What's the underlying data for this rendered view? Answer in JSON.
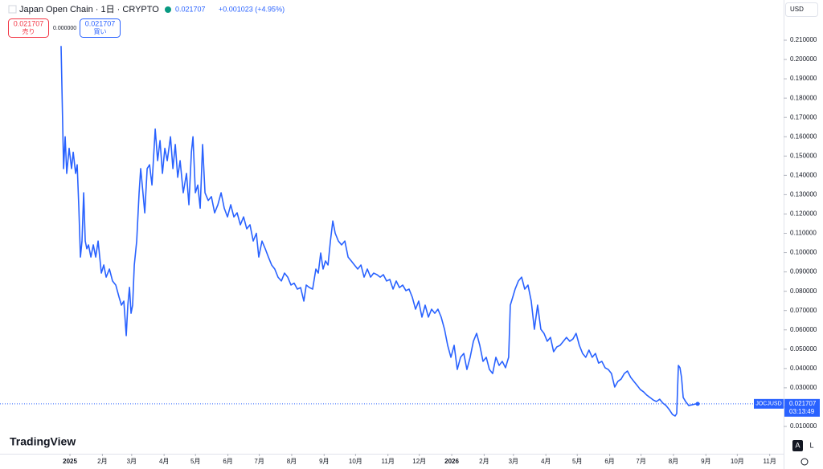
{
  "chart_data": {
    "type": "line",
    "header": {
      "symbol": "Japan Open Chain · 1日 · CRYPTO",
      "change": "+0.001023 (+4.95%)",
      "currency": "USD"
    },
    "trade": {
      "sell_price": "0.021707",
      "sell_label": "売り",
      "spread": "0.000000",
      "buy_price": "0.021707",
      "buy_label": "買い"
    },
    "last_price": 0.021707,
    "countdown": "03:13:49",
    "logo": "TradingView",
    "scale_buttons": [
      "A",
      "L"
    ],
    "xlim": [
      -66.9,
      682.3
    ],
    "ylim": [
      -0.00414,
      0.2308
    ],
    "xticks": [
      {
        "value": 0,
        "label": "2025"
      },
      {
        "value": 31,
        "label": "2月"
      },
      {
        "value": 59,
        "label": "3月"
      },
      {
        "value": 90,
        "label": "4月"
      },
      {
        "value": 120,
        "label": "5月"
      },
      {
        "value": 151,
        "label": "6月"
      },
      {
        "value": 181,
        "label": "7月"
      },
      {
        "value": 212,
        "label": "8月"
      },
      {
        "value": 243,
        "label": "9月"
      },
      {
        "value": 273,
        "label": "10月"
      },
      {
        "value": 304,
        "label": "11月"
      },
      {
        "value": 334,
        "label": "12月"
      },
      {
        "value": 365,
        "label": "2026"
      },
      {
        "value": 396,
        "label": "2月"
      },
      {
        "value": 424,
        "label": "3月"
      },
      {
        "value": 455,
        "label": "4月"
      },
      {
        "value": 485,
        "label": "5月"
      },
      {
        "value": 516,
        "label": "6月"
      },
      {
        "value": 546,
        "label": "7月"
      },
      {
        "value": 577,
        "label": "8月"
      },
      {
        "value": 608,
        "label": "9月"
      },
      {
        "value": 638,
        "label": "10月"
      },
      {
        "value": 669,
        "label": "11月"
      }
    ],
    "yticks": [
      {
        "value": 0.01,
        "label": "0.010000"
      },
      {
        "value": 0.02,
        "label": "0.020000"
      },
      {
        "value": 0.03,
        "label": "0.030000"
      },
      {
        "value": 0.04,
        "label": "0.040000"
      },
      {
        "value": 0.05,
        "label": "0.050000"
      },
      {
        "value": 0.06,
        "label": "0.060000"
      },
      {
        "value": 0.07,
        "label": "0.070000"
      },
      {
        "value": 0.08,
        "label": "0.080000"
      },
      {
        "value": 0.09,
        "label": "0.090000"
      },
      {
        "value": 0.1,
        "label": "0.100000"
      },
      {
        "value": 0.11,
        "label": "0.110000"
      },
      {
        "value": 0.12,
        "label": "0.120000"
      },
      {
        "value": 0.13,
        "label": "0.130000"
      },
      {
        "value": 0.14,
        "label": "0.140000"
      },
      {
        "value": 0.15,
        "label": "0.150000"
      },
      {
        "value": 0.16,
        "label": "0.160000"
      },
      {
        "value": 0.17,
        "label": "0.170000"
      },
      {
        "value": 0.18,
        "label": "0.180000"
      },
      {
        "value": 0.19,
        "label": "0.190000"
      },
      {
        "value": 0.2,
        "label": "0.200000"
      },
      {
        "value": 0.21,
        "label": "0.210000"
      }
    ],
    "series": [
      {
        "name": "JOCJUSD",
        "color": "#2962ff",
        "x": [
          -8.5,
          -6.1,
          -4.6,
          -3.1,
          -0.8,
          1.5,
          3.1,
          5.4,
          6.9,
          8.5,
          10,
          11.5,
          13.1,
          14.6,
          16.1,
          17.7,
          20,
          22.3,
          24.6,
          26.9,
          30,
          32.3,
          34.6,
          37.7,
          40.7,
          43.8,
          46.9,
          49.2,
          51.5,
          53.8,
          55.3,
          56.9,
          58.4,
          59.9,
          61.5,
          63.8,
          66.1,
          67.6,
          69.1,
          71.5,
          73.8,
          76.1,
          78.4,
          81.5,
          83.8,
          86.1,
          88.4,
          90.7,
          93,
          96.1,
          98.4,
          100.7,
          103,
          105.3,
          108.3,
          111.4,
          113.7,
          116.1,
          117.6,
          119.9,
          122.2,
          124.5,
          126.8,
          129.1,
          132.2,
          135.2,
          138.3,
          141.4,
          144.5,
          147.5,
          150.6,
          153.7,
          156.7,
          159.8,
          162.9,
          166,
          169,
          172.1,
          175.2,
          178.2,
          180.5,
          183.6,
          186.7,
          189.7,
          192.8,
          195.8,
          198.9,
          202.1,
          205.1,
          208.2,
          211.3,
          214.3,
          217.4,
          220.5,
          223.6,
          225.9,
          229,
          232,
          235.1,
          237.4,
          239.7,
          242,
          244.3,
          246.7,
          249,
          251.3,
          253.6,
          256.6,
          259.7,
          262.8,
          265.9,
          268.9,
          272,
          275.1,
          278.2,
          281.2,
          284.3,
          287.4,
          290.4,
          293.5,
          296.6,
          299.6,
          302.7,
          305.8,
          308.9,
          311.9,
          315,
          318.1,
          321.2,
          324.2,
          327.3,
          330.4,
          333.4,
          336.5,
          339.6,
          342.7,
          345.7,
          348.8,
          351.8,
          354.9,
          358.1,
          361.1,
          364.2,
          367.3,
          370.3,
          373.4,
          376.5,
          379.5,
          382.6,
          385.7,
          388.8,
          391.8,
          394.9,
          398,
          401,
          404.1,
          407.2,
          410.3,
          413.3,
          416.4,
          419.4,
          421,
          423.3,
          425.6,
          428.7,
          431.8,
          434.8,
          437.9,
          441,
          444,
          447.1,
          450.2,
          453.2,
          456.3,
          459.4,
          462.4,
          465.5,
          468.6,
          471.7,
          474.7,
          477.8,
          480.9,
          483.9,
          487,
          490.1,
          493.1,
          496.2,
          499.3,
          502.4,
          505.4,
          508.5,
          511.6,
          514.6,
          517.7,
          520.8,
          523.8,
          526.9,
          530,
          533,
          536.1,
          539.2,
          542.3,
          545.3,
          548.4,
          551.5,
          554.5,
          557.6,
          560.7,
          563.8,
          566.8,
          569.9,
          573,
          576,
          578.6,
          580.1,
          581.7,
          583.2,
          584.7,
          586.3,
          588.6,
          591.6,
          594.7,
          597.8,
          600.1
        ],
        "values": [
          0.207,
          0.1435,
          0.16,
          0.141,
          0.154,
          0.1435,
          0.152,
          0.141,
          0.1455,
          0.123,
          0.0977,
          0.106,
          0.131,
          0.106,
          0.102,
          0.104,
          0.0977,
          0.104,
          0.0977,
          0.106,
          0.0894,
          0.0936,
          0.0873,
          0.0915,
          0.0853,
          0.0832,
          0.077,
          0.0728,
          0.0749,
          0.057,
          0.0728,
          0.082,
          0.0686,
          0.0728,
          0.0936,
          0.106,
          0.131,
          0.1435,
          0.135,
          0.1206,
          0.1435,
          0.1455,
          0.135,
          0.164,
          0.1476,
          0.158,
          0.141,
          0.154,
          0.1476,
          0.16,
          0.1435,
          0.156,
          0.139,
          0.1476,
          0.131,
          0.141,
          0.1248,
          0.152,
          0.16,
          0.131,
          0.135,
          0.123,
          0.156,
          0.131,
          0.127,
          0.129,
          0.1206,
          0.1248,
          0.131,
          0.123,
          0.1185,
          0.1248,
          0.1185,
          0.1206,
          0.1144,
          0.1185,
          0.1123,
          0.1144,
          0.106,
          0.11,
          0.0977,
          0.106,
          0.102,
          0.0977,
          0.0936,
          0.0915,
          0.0873,
          0.0853,
          0.0894,
          0.0873,
          0.0832,
          0.0842,
          0.0811,
          0.0819,
          0.0749,
          0.0832,
          0.0819,
          0.0811,
          0.0915,
          0.0894,
          0.0998,
          0.0915,
          0.0957,
          0.0936,
          0.106,
          0.1164,
          0.11,
          0.106,
          0.104,
          0.106,
          0.0977,
          0.0957,
          0.0936,
          0.0915,
          0.0936,
          0.0873,
          0.0915,
          0.0873,
          0.0894,
          0.0886,
          0.0873,
          0.0886,
          0.0853,
          0.0861,
          0.0811,
          0.0853,
          0.0819,
          0.0832,
          0.0803,
          0.0811,
          0.0769,
          0.0707,
          0.0749,
          0.0666,
          0.0728,
          0.0666,
          0.0707,
          0.0686,
          0.0707,
          0.0666,
          0.0603,
          0.052,
          0.0458,
          0.052,
          0.0395,
          0.0458,
          0.0478,
          0.0395,
          0.0458,
          0.0541,
          0.0582,
          0.052,
          0.0437,
          0.0458,
          0.0395,
          0.0374,
          0.0458,
          0.0416,
          0.0437,
          0.0404,
          0.0458,
          0.0728,
          0.0769,
          0.0811,
          0.0853,
          0.0873,
          0.0811,
          0.0832,
          0.0749,
          0.0603,
          0.0728,
          0.0603,
          0.0582,
          0.0541,
          0.0561,
          0.0487,
          0.0512,
          0.052,
          0.0541,
          0.0561,
          0.0541,
          0.0553,
          0.0582,
          0.052,
          0.0478,
          0.0458,
          0.0495,
          0.0458,
          0.0478,
          0.0428,
          0.0437,
          0.0404,
          0.0395,
          0.0374,
          0.0304,
          0.0333,
          0.0345,
          0.0374,
          0.0387,
          0.0354,
          0.0333,
          0.0312,
          0.0291,
          0.0279,
          0.0262,
          0.025,
          0.0237,
          0.0229,
          0.0241,
          0.0221,
          0.0208,
          0.0187,
          0.0162,
          0.0154,
          0.0167,
          0.0416,
          0.0404,
          0.0354,
          0.025,
          0.0229,
          0.0208,
          0.0212,
          0.0216,
          0.021707
        ]
      }
    ]
  }
}
